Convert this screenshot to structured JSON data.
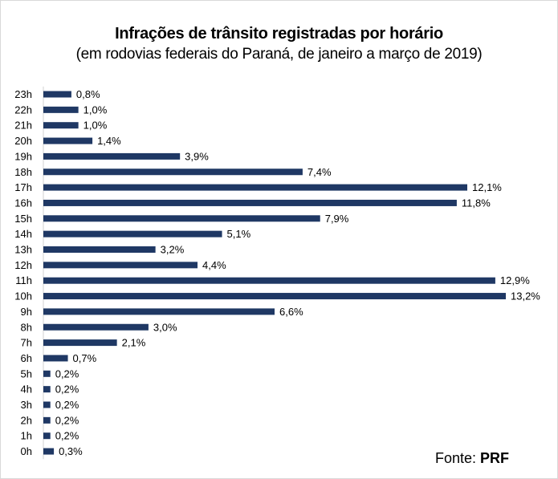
{
  "chart_data": {
    "type": "bar",
    "orientation": "horizontal",
    "title": "Infrações de trânsito registradas por horário",
    "subtitle": "(em rodovias federais do Paraná, de janeiro a março de 2019)",
    "categories": [
      "23h",
      "22h",
      "21h",
      "20h",
      "19h",
      "18h",
      "17h",
      "16h",
      "15h",
      "14h",
      "13h",
      "12h",
      "11h",
      "10h",
      "9h",
      "8h",
      "7h",
      "6h",
      "5h",
      "4h",
      "3h",
      "2h",
      "1h",
      "0h"
    ],
    "values": [
      0.8,
      1.0,
      1.0,
      1.4,
      3.9,
      7.4,
      12.1,
      11.8,
      7.9,
      5.1,
      3.2,
      4.4,
      12.9,
      13.2,
      6.6,
      3.0,
      2.1,
      0.7,
      0.2,
      0.2,
      0.2,
      0.2,
      0.2,
      0.3
    ],
    "value_labels": [
      "0,8%",
      "1,0%",
      "1,0%",
      "1,4%",
      "3,9%",
      "7,4%",
      "12,1%",
      "11,8%",
      "7,9%",
      "5,1%",
      "3,2%",
      "4,4%",
      "12,9%",
      "13,2%",
      "6,6%",
      "3,0%",
      "2,1%",
      "0,7%",
      "0,2%",
      "0,2%",
      "0,2%",
      "0,2%",
      "0,2%",
      "0,3%"
    ],
    "xlabel": "",
    "ylabel": "",
    "xlim": [
      0,
      13.2
    ],
    "grid": false,
    "legend": "none",
    "bar_color": "#1f3864"
  },
  "source": {
    "label": "Fonte:",
    "org": "PRF"
  }
}
